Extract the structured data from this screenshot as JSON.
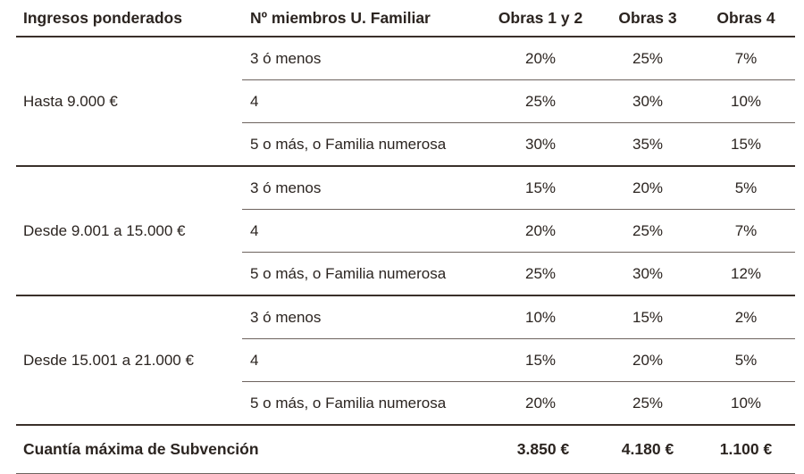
{
  "headers": [
    "Ingresos ponderados",
    "Nº miembros U. Familiar",
    "Obras 1 y 2",
    "Obras 3",
    "Obras 4"
  ],
  "groups": [
    {
      "income": "Hasta 9.000 €",
      "rows": [
        {
          "members": "3 ó menos",
          "o12": "20%",
          "o3": "25%",
          "o4": "7%"
        },
        {
          "members": "4",
          "o12": "25%",
          "o3": "30%",
          "o4": "10%"
        },
        {
          "members": "5 o más, o Familia numerosa",
          "o12": "30%",
          "o3": "35%",
          "o4": "15%"
        }
      ]
    },
    {
      "income": "Desde 9.001 a 15.000 €",
      "rows": [
        {
          "members": "3 ó menos",
          "o12": "15%",
          "o3": "20%",
          "o4": "5%"
        },
        {
          "members": "4",
          "o12": "20%",
          "o3": "25%",
          "o4": "7%"
        },
        {
          "members": "5 o más, o Familia numerosa",
          "o12": "25%",
          "o3": "30%",
          "o4": "12%"
        }
      ]
    },
    {
      "income": "Desde 15.001 a 21.000 €",
      "rows": [
        {
          "members": "3 ó menos",
          "o12": "10%",
          "o3": "15%",
          "o4": "2%"
        },
        {
          "members": "4",
          "o12": "15%",
          "o3": "20%",
          "o4": "5%"
        },
        {
          "members": "5 o más, o Familia numerosa",
          "o12": "20%",
          "o3": "25%",
          "o4": "10%"
        }
      ]
    }
  ],
  "footer": {
    "label": "Cuantía máxima de Subvención",
    "o12": "3.850 €",
    "o3": "4.180 €",
    "o4": "1.100 €"
  }
}
